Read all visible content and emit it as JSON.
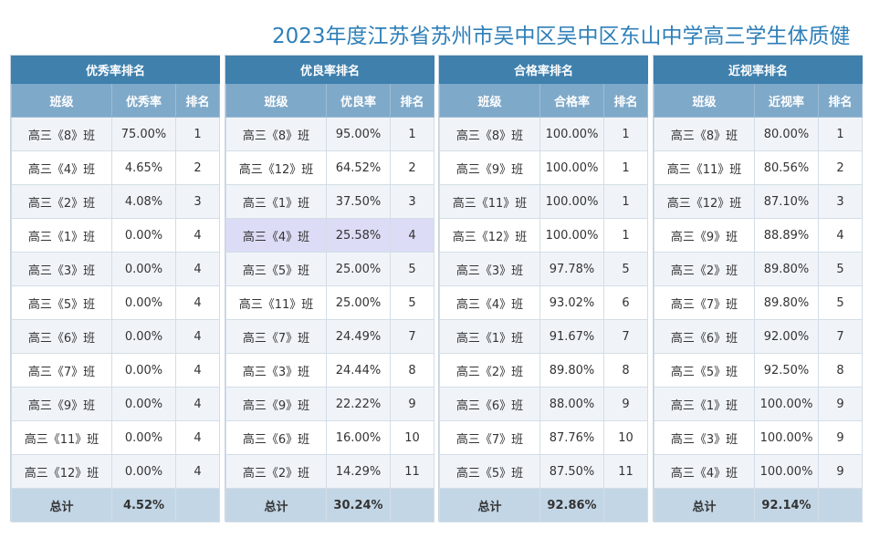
{
  "page": {
    "title": "2023年度江苏省苏州市吴中区吴中区东山中学高三学生体质健"
  },
  "panels": [
    {
      "title": "优秀率排名",
      "headers": [
        "班级",
        "优秀率",
        "排名"
      ],
      "rows": [
        [
          "高三《8》班",
          "75.00%",
          "1"
        ],
        [
          "高三《4》班",
          "4.65%",
          "2"
        ],
        [
          "高三《2》班",
          "4.08%",
          "3"
        ],
        [
          "高三《1》班",
          "0.00%",
          "4"
        ],
        [
          "高三《3》班",
          "0.00%",
          "4"
        ],
        [
          "高三《5》班",
          "0.00%",
          "4"
        ],
        [
          "高三《6》班",
          "0.00%",
          "4"
        ],
        [
          "高三《7》班",
          "0.00%",
          "4"
        ],
        [
          "高三《9》班",
          "0.00%",
          "4"
        ],
        [
          "高三《11》班",
          "0.00%",
          "4"
        ],
        [
          "高三《12》班",
          "0.00%",
          "4"
        ]
      ],
      "total": [
        "总计",
        "4.52%",
        ""
      ]
    },
    {
      "title": "优良率排名",
      "headers": [
        "班级",
        "优良率",
        "排名"
      ],
      "rows": [
        [
          "高三《8》班",
          "95.00%",
          "1"
        ],
        [
          "高三《12》班",
          "64.52%",
          "2"
        ],
        [
          "高三《1》班",
          "37.50%",
          "3"
        ],
        [
          "高三《4》班",
          "25.58%",
          "4"
        ],
        [
          "高三《5》班",
          "25.00%",
          "5"
        ],
        [
          "高三《11》班",
          "25.00%",
          "5"
        ],
        [
          "高三《7》班",
          "24.49%",
          "7"
        ],
        [
          "高三《3》班",
          "24.44%",
          "8"
        ],
        [
          "高三《9》班",
          "22.22%",
          "9"
        ],
        [
          "高三《6》班",
          "16.00%",
          "10"
        ],
        [
          "高三《2》班",
          "14.29%",
          "11"
        ]
      ],
      "total": [
        "总计",
        "30.24%",
        ""
      ]
    },
    {
      "title": "合格率排名",
      "headers": [
        "班级",
        "合格率",
        "排名"
      ],
      "rows": [
        [
          "高三《8》班",
          "100.00%",
          "1"
        ],
        [
          "高三《9》班",
          "100.00%",
          "1"
        ],
        [
          "高三《11》班",
          "100.00%",
          "1"
        ],
        [
          "高三《12》班",
          "100.00%",
          "1"
        ],
        [
          "高三《3》班",
          "97.78%",
          "5"
        ],
        [
          "高三《4》班",
          "93.02%",
          "6"
        ],
        [
          "高三《1》班",
          "91.67%",
          "7"
        ],
        [
          "高三《2》班",
          "89.80%",
          "8"
        ],
        [
          "高三《6》班",
          "88.00%",
          "9"
        ],
        [
          "高三《7》班",
          "87.76%",
          "10"
        ],
        [
          "高三《5》班",
          "87.50%",
          "11"
        ]
      ],
      "total": [
        "总计",
        "92.86%",
        ""
      ]
    },
    {
      "title": "近视率排名",
      "headers": [
        "班级",
        "近视率",
        "排名"
      ],
      "rows": [
        [
          "高三《8》班",
          "80.00%",
          "1"
        ],
        [
          "高三《11》班",
          "80.56%",
          "2"
        ],
        [
          "高三《12》班",
          "87.10%",
          "3"
        ],
        [
          "高三《9》班",
          "88.89%",
          "4"
        ],
        [
          "高三《2》班",
          "89.80%",
          "5"
        ],
        [
          "高三《7》班",
          "89.80%",
          "5"
        ],
        [
          "高三《6》班",
          "92.00%",
          "7"
        ],
        [
          "高三《5》班",
          "92.50%",
          "8"
        ],
        [
          "高三《1》班",
          "100.00%",
          "9"
        ],
        [
          "高三《3》班",
          "100.00%",
          "9"
        ],
        [
          "高三《4》班",
          "100.00%",
          "9"
        ]
      ],
      "total": [
        "总计",
        "92.14%",
        ""
      ]
    }
  ],
  "highlight": {
    "panel": 1,
    "row": 3
  },
  "colors": {
    "title": "#2e7fb8",
    "panel_header": "#3f80ad",
    "column_header": "#7fa9c9",
    "row_alt": "#f0f4f9",
    "total_row": "#c3d6e6",
    "highlight": "#dcdcf6"
  }
}
